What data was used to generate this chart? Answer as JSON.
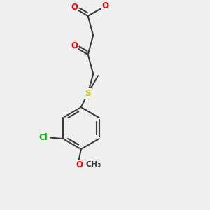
{
  "bg_color": "#efefef",
  "bond_color": "#3a3a3a",
  "bond_width": 1.5,
  "atom_colors": {
    "O": "#ff0000",
    "S": "#cccc00",
    "Cl": "#00bb00",
    "C": "#3a3a3a"
  },
  "font_size": 8.5,
  "fig_size": [
    3.0,
    3.0
  ],
  "dpi": 100,
  "xlim": [
    0,
    10
  ],
  "ylim": [
    0,
    10
  ]
}
